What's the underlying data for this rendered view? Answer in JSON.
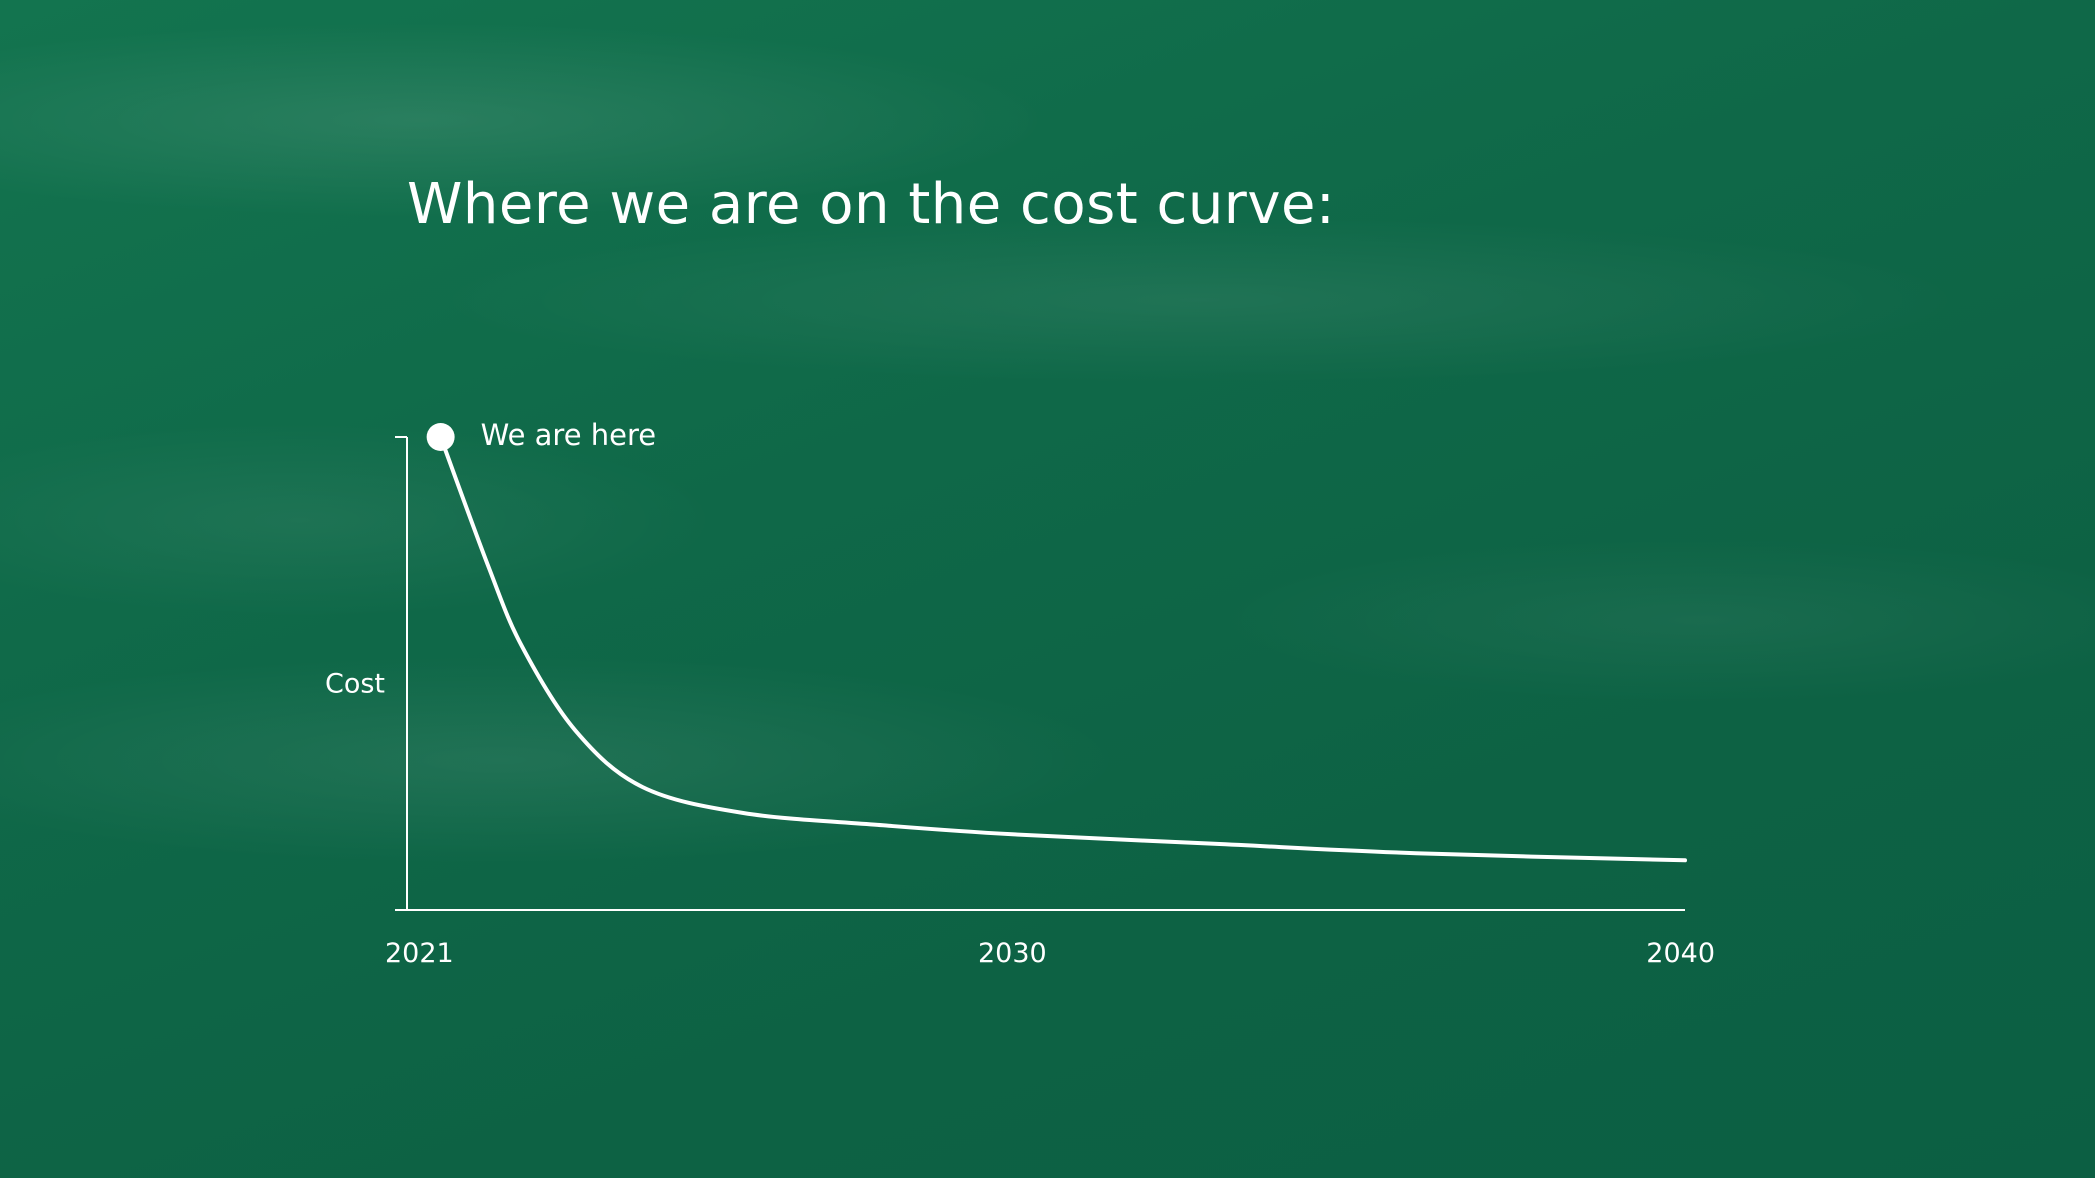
{
  "slide": {
    "title": "Where we are on the cost curve:"
  },
  "colors": {
    "background": "#0e6446",
    "foreground": "#ffffff"
  },
  "chart_data": {
    "type": "line",
    "title": "Where we are on the cost curve:",
    "xlabel": "",
    "ylabel": "Cost",
    "x_ticks": [
      "2021",
      "2030",
      "2040"
    ],
    "xlim": [
      2021,
      2040
    ],
    "ylim": [
      0,
      1
    ],
    "y_ticks_shown": false,
    "grid": false,
    "series": [
      {
        "x": [
          2021.5,
          2022.2,
          2022.7,
          2023.5,
          2024.5,
          2026,
          2028,
          2030,
          2033,
          2036,
          2040
        ],
        "y": [
          1.0,
          0.73,
          0.56,
          0.38,
          0.26,
          0.205,
          0.18,
          0.16,
          0.14,
          0.12,
          0.105
        ]
      }
    ],
    "annotations": [
      {
        "text": "We are here",
        "x": 2021.5,
        "y": 1.0,
        "marker": "dot"
      }
    ]
  }
}
